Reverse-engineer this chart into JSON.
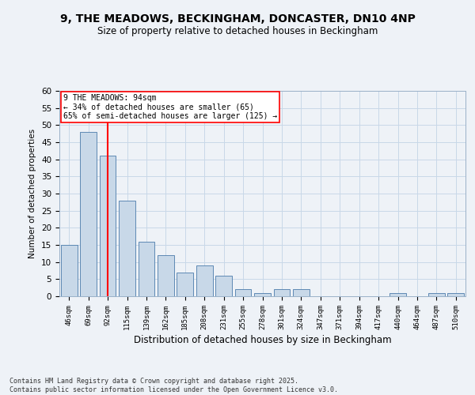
{
  "title_line1": "9, THE MEADOWS, BECKINGHAM, DONCASTER, DN10 4NP",
  "title_line2": "Size of property relative to detached houses in Beckingham",
  "xlabel": "Distribution of detached houses by size in Beckingham",
  "ylabel": "Number of detached properties",
  "bar_labels": [
    "46sqm",
    "69sqm",
    "92sqm",
    "115sqm",
    "139sqm",
    "162sqm",
    "185sqm",
    "208sqm",
    "231sqm",
    "255sqm",
    "278sqm",
    "301sqm",
    "324sqm",
    "347sqm",
    "371sqm",
    "394sqm",
    "417sqm",
    "440sqm",
    "464sqm",
    "487sqm",
    "510sqm"
  ],
  "bar_values": [
    15,
    48,
    41,
    28,
    16,
    12,
    7,
    9,
    6,
    2,
    1,
    2,
    2,
    0,
    0,
    0,
    0,
    1,
    0,
    1,
    1
  ],
  "bar_color": "#c8d8e8",
  "bar_edge_color": "#4a7aaa",
  "grid_color": "#c8d8e8",
  "vline_x": 2,
  "vline_color": "red",
  "annotation_text": "9 THE MEADOWS: 94sqm\n← 34% of detached houses are smaller (65)\n65% of semi-detached houses are larger (125) →",
  "annotation_box_color": "white",
  "annotation_box_edge": "red",
  "ylim": [
    0,
    60
  ],
  "yticks": [
    0,
    5,
    10,
    15,
    20,
    25,
    30,
    35,
    40,
    45,
    50,
    55,
    60
  ],
  "footer": "Contains HM Land Registry data © Crown copyright and database right 2025.\nContains public sector information licensed under the Open Government Licence v3.0.",
  "bg_color": "#eef2f7"
}
